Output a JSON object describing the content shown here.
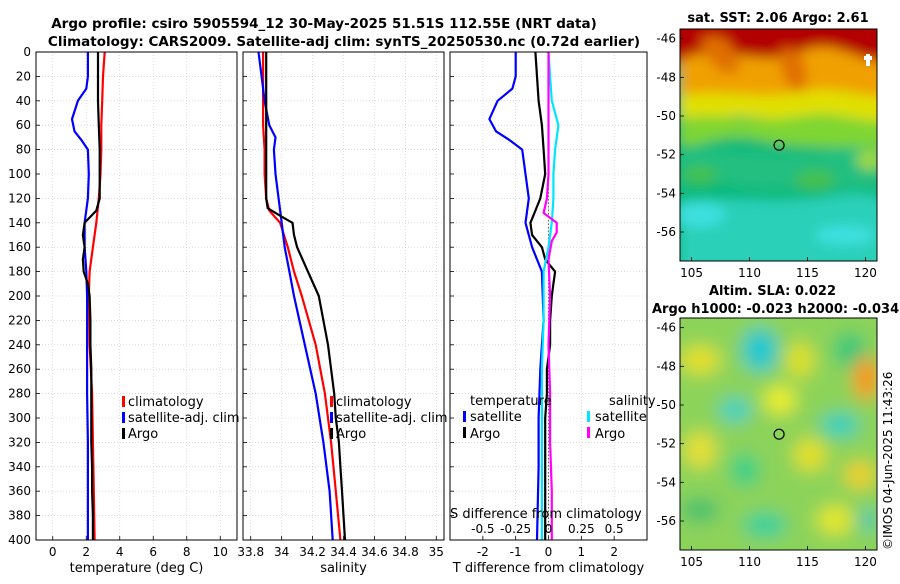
{
  "title": {
    "line1": "Argo profile: csiro 5905594_12 30-May-2025 51.51S 112.55E (NRT data)",
    "line2": "Climatology: CARS2009. Satellite-adj clim: synTS_20250530.nc (0.72d earlier)"
  },
  "watermark": "©IMOS 04-Jun-2025 11:43:26",
  "colors": {
    "climatology": "#ff0000",
    "satellite": "#0000ff",
    "argo": "#000000",
    "sal_satellite": "#00e5ff",
    "sal_argo": "#ff00ff"
  },
  "chart_data": [
    {
      "type": "line",
      "name": "temperature",
      "xlabel": "temperature (deg C)",
      "xlim": [
        -1,
        11
      ],
      "ylim": [
        0,
        400
      ],
      "xticks": [
        "0",
        "2",
        "4",
        "6",
        "8",
        "10"
      ],
      "yticks": [
        "0",
        "20",
        "40",
        "60",
        "80",
        "100",
        "120",
        "140",
        "160",
        "180",
        "200",
        "220",
        "240",
        "260",
        "280",
        "300",
        "320",
        "340",
        "360",
        "380",
        "400"
      ],
      "legend": [
        "climatology",
        "satellite-adj. clim",
        "Argo"
      ],
      "series": [
        {
          "name": "climatology",
          "color": "#ff0000",
          "depth": [
            0,
            20,
            40,
            60,
            80,
            100,
            120,
            140,
            160,
            180,
            200,
            240,
            280,
            320,
            360,
            400
          ],
          "values": [
            3.1,
            3.0,
            2.95,
            2.9,
            2.9,
            2.85,
            2.75,
            2.6,
            2.4,
            2.2,
            2.15,
            2.2,
            2.35,
            2.4,
            2.45,
            2.5
          ]
        },
        {
          "name": "satellite-adj. clim",
          "color": "#0000ff",
          "depth": [
            0,
            20,
            30,
            40,
            55,
            65,
            72,
            80,
            100,
            120,
            140,
            160,
            180,
            200,
            240,
            280,
            320,
            360,
            400
          ],
          "values": [
            2.1,
            2.1,
            2.0,
            1.5,
            1.15,
            1.3,
            1.7,
            2.1,
            2.15,
            2.1,
            1.9,
            1.9,
            2.0,
            2.05,
            2.05,
            2.05,
            2.1,
            2.1,
            2.1
          ]
        },
        {
          "name": "Argo",
          "color": "#000000",
          "depth": [
            0,
            20,
            40,
            60,
            80,
            100,
            120,
            130,
            140,
            150,
            160,
            170,
            180,
            190,
            200,
            220,
            240,
            260,
            280,
            300,
            320,
            340,
            360,
            380,
            400
          ],
          "values": [
            2.7,
            2.7,
            2.7,
            2.75,
            2.8,
            2.8,
            2.8,
            2.6,
            1.9,
            1.8,
            1.9,
            1.8,
            1.85,
            2.1,
            2.2,
            2.25,
            2.25,
            2.3,
            2.3,
            2.3,
            2.3,
            2.35,
            2.35,
            2.4,
            2.4
          ]
        }
      ]
    },
    {
      "type": "line",
      "name": "salinity",
      "xlabel": "salinity",
      "xlim": [
        33.75,
        35.05
      ],
      "ylim": [
        0,
        400
      ],
      "xticks": [
        "33.8",
        "34",
        "34.2",
        "34.4",
        "34.6",
        "34.8",
        "35"
      ],
      "legend": [
        "climatology",
        "satellite-adj. clim",
        "Argo"
      ],
      "series": [
        {
          "name": "climatology",
          "color": "#ff0000",
          "depth": [
            0,
            20,
            40,
            60,
            80,
            100,
            120,
            130,
            140,
            160,
            180,
            200,
            240,
            280,
            320,
            360,
            400
          ],
          "values": [
            33.88,
            33.88,
            33.88,
            33.88,
            33.89,
            33.89,
            33.9,
            33.92,
            33.99,
            34.04,
            34.08,
            34.13,
            34.22,
            34.28,
            34.32,
            34.35,
            34.38
          ]
        },
        {
          "name": "satellite-adj. clim",
          "color": "#0000ff",
          "depth": [
            0,
            20,
            40,
            60,
            70,
            80,
            100,
            120,
            140,
            160,
            180,
            200,
            240,
            280,
            320,
            360,
            400
          ],
          "values": [
            33.85,
            33.87,
            33.89,
            33.92,
            33.96,
            33.95,
            33.96,
            33.98,
            34.0,
            34.02,
            34.05,
            34.08,
            34.15,
            34.22,
            34.27,
            34.31,
            34.33
          ]
        },
        {
          "name": "Argo",
          "color": "#000000",
          "depth": [
            0,
            20,
            40,
            60,
            80,
            100,
            120,
            128,
            135,
            140,
            150,
            160,
            180,
            200,
            220,
            240,
            260,
            280,
            300,
            320,
            340,
            360,
            380,
            400
          ],
          "values": [
            33.9,
            33.9,
            33.9,
            33.9,
            33.9,
            33.9,
            33.9,
            33.91,
            34.0,
            34.07,
            34.08,
            34.1,
            34.17,
            34.24,
            34.27,
            34.3,
            34.32,
            34.34,
            34.35,
            34.37,
            34.38,
            34.39,
            34.4,
            34.41
          ]
        }
      ]
    },
    {
      "type": "line",
      "name": "differences",
      "xlabel": "T difference from climatology",
      "xlabel2": "S difference from climatology",
      "xlim": [
        -3,
        3
      ],
      "ylim": [
        0,
        400
      ],
      "xticks": [
        "-2",
        "-1",
        "0",
        "1",
        "2"
      ],
      "xticks_top": [
        "-0.5",
        "-0.25",
        "0",
        "0.25",
        "0.5"
      ],
      "legend_temperature_title": "temperature",
      "legend_salinity_title": "salinity",
      "legend_temperature": [
        "satellite",
        "Argo"
      ],
      "legend_salinity": [
        "satellite",
        "Argo"
      ],
      "series": [
        {
          "name": "temperature satellite",
          "color": "#0000ff",
          "depth": [
            0,
            20,
            30,
            40,
            55,
            65,
            72,
            80,
            100,
            120,
            140,
            160,
            180,
            220,
            260,
            300,
            340,
            400
          ],
          "values": [
            -1.0,
            -1.0,
            -1.1,
            -1.55,
            -1.8,
            -1.6,
            -1.2,
            -0.8,
            -0.7,
            -0.6,
            -0.7,
            -0.5,
            -0.2,
            -0.15,
            -0.25,
            -0.3,
            -0.3,
            -0.35
          ]
        },
        {
          "name": "temperature Argo",
          "color": "#000000",
          "depth": [
            0,
            20,
            40,
            60,
            80,
            100,
            120,
            130,
            140,
            150,
            160,
            170,
            180,
            190,
            200,
            220,
            240,
            260,
            280,
            300,
            320,
            340,
            360,
            380,
            400
          ],
          "values": [
            -0.4,
            -0.35,
            -0.3,
            -0.2,
            -0.15,
            -0.1,
            -0.25,
            -0.4,
            -0.55,
            -0.5,
            -0.2,
            -0.1,
            0.2,
            0.15,
            0.1,
            0.05,
            0.05,
            -0.05,
            -0.05,
            -0.1,
            -0.1,
            -0.1,
            -0.1,
            -0.1,
            -0.1
          ]
        },
        {
          "name": "salinity satellite",
          "color": "#00e5ff",
          "depth": [
            0,
            20,
            40,
            60,
            80,
            100,
            120,
            140,
            160,
            180,
            220,
            260,
            300,
            340,
            400
          ],
          "values": [
            0.0,
            0.05,
            0.1,
            0.3,
            0.2,
            0.15,
            0.15,
            0.1,
            0.0,
            -0.15,
            -0.15,
            -0.2,
            -0.2,
            -0.2,
            -0.2
          ]
        },
        {
          "name": "salinity Argo",
          "color": "#ff00ff",
          "depth": [
            0,
            20,
            40,
            60,
            80,
            100,
            120,
            132,
            140,
            148,
            155,
            170,
            200,
            240,
            280,
            320,
            360,
            400
          ],
          "values": [
            0.0,
            0.0,
            0.0,
            0.0,
            0.0,
            0.0,
            -0.05,
            -0.15,
            0.25,
            0.25,
            0.1,
            0.0,
            0.05,
            0.0,
            0.05,
            0.05,
            0.1,
            0.1
          ]
        }
      ]
    },
    {
      "type": "heatmap",
      "name": "sat-sst",
      "title": "sat. SST: 2.06 Argo: 2.61",
      "xlim": [
        104,
        121
      ],
      "ylim": [
        -57.5,
        -45.5
      ],
      "xticks": [
        "105",
        "110",
        "115",
        "120"
      ],
      "yticks": [
        "-46",
        "-48",
        "-50",
        "-52",
        "-54",
        "-56"
      ],
      "profile_location": {
        "lon": 112.55,
        "lat": -51.51
      }
    },
    {
      "type": "heatmap",
      "name": "altim-sla",
      "title": "Altim. SLA: 0.022",
      "title2": "Argo h1000: -0.023 h2000: -0.034",
      "xlim": [
        104,
        121
      ],
      "ylim": [
        -57.5,
        -45.5
      ],
      "xticks": [
        "105",
        "110",
        "115",
        "120"
      ],
      "yticks": [
        "-46",
        "-48",
        "-50",
        "-52",
        "-54",
        "-56"
      ],
      "profile_location": {
        "lon": 112.55,
        "lat": -51.51
      }
    }
  ]
}
